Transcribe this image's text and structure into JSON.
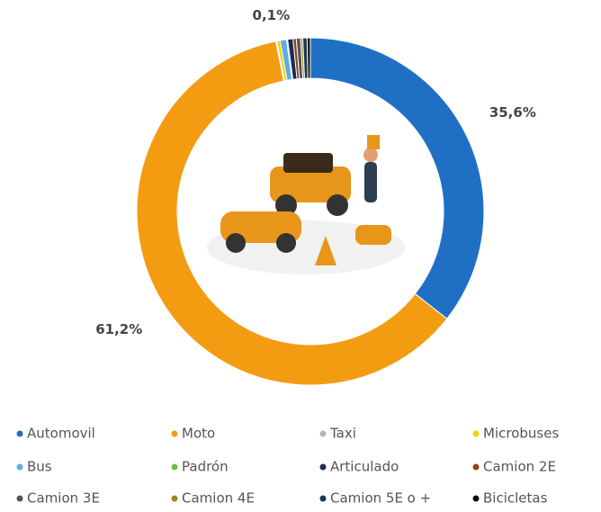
{
  "chart_data": {
    "type": "donut",
    "categories": [
      "Automovil",
      "Moto",
      "Taxi",
      "Microbuses",
      "Bus",
      "Padrón",
      "Articulado",
      "Camion 2E",
      "Camion 3E",
      "Camion 4E",
      "Camion 5E o +",
      "Bicicletas"
    ],
    "values": [
      35.6,
      61.2,
      0.1,
      0.3,
      0.6,
      0.1,
      0.5,
      0.3,
      0.4,
      0.2,
      0.4,
      0.3
    ],
    "value_labels": [
      "35,6%",
      "61,2%",
      "0,1%",
      null,
      null,
      null,
      null,
      null,
      null,
      null,
      null,
      null
    ],
    "colors": [
      "#1f6fc5",
      "#f39c12",
      "#b5b5b5",
      "#f5d000",
      "#5dade2",
      "#6abf4b",
      "#1a2a5a",
      "#8b4513",
      "#555555",
      "#9a8a20",
      "#1b3a4b",
      "#111111"
    ]
  }
}
